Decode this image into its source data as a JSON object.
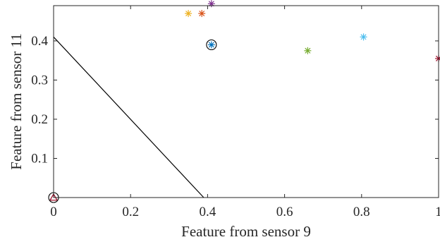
{
  "chart_data": {
    "type": "scatter",
    "xlabel": "Feature from sensor 9",
    "ylabel": "Feature from sensor 11",
    "xlim": [
      0,
      1
    ],
    "ylim": [
      0,
      0.49
    ],
    "x_ticks": [
      0,
      0.2,
      0.4,
      0.6,
      0.8,
      1
    ],
    "x_tick_labels": [
      "0",
      "0.2",
      "0.4",
      "0.6",
      "0.8",
      "1"
    ],
    "y_ticks": [
      0.1,
      0.2,
      0.3,
      0.4
    ],
    "y_tick_labels": [
      "0.1",
      "0.2",
      "0.3",
      "0.4"
    ],
    "grid": false,
    "box": true,
    "series": [
      {
        "marker": "asterisk",
        "color": "#EDB120",
        "points": [
          {
            "x": 0.35,
            "y": 0.47
          }
        ]
      },
      {
        "marker": "asterisk",
        "color": "#D95319",
        "points": [
          {
            "x": 0.385,
            "y": 0.47
          }
        ]
      },
      {
        "marker": "asterisk",
        "color": "#7E2F8E",
        "points": [
          {
            "x": 0.41,
            "y": 0.495
          }
        ]
      },
      {
        "marker": "asterisk",
        "color": "#0072BD",
        "points": [
          {
            "x": 0.41,
            "y": 0.39
          }
        ]
      },
      {
        "marker": "asterisk",
        "color": "#77AC30",
        "points": [
          {
            "x": 0.66,
            "y": 0.375
          }
        ]
      },
      {
        "marker": "asterisk",
        "color": "#4DBEEE",
        "points": [
          {
            "x": 0.805,
            "y": 0.41
          }
        ]
      },
      {
        "marker": "asterisk",
        "color": "#A2142F",
        "points": [
          {
            "x": 1.0,
            "y": 0.355
          }
        ]
      },
      {
        "marker": "triangle",
        "color": "#A2142F",
        "points": [
          {
            "x": 0.0,
            "y": 0.0
          }
        ]
      }
    ],
    "circled_points": [
      {
        "x": 0.41,
        "y": 0.39,
        "color": "#000000"
      },
      {
        "x": 0.0,
        "y": 0.0,
        "color": "#000000"
      }
    ],
    "lines": [
      {
        "x": [
          0,
          0.39
        ],
        "y": [
          0.41,
          0
        ],
        "color": "#000000"
      }
    ]
  }
}
